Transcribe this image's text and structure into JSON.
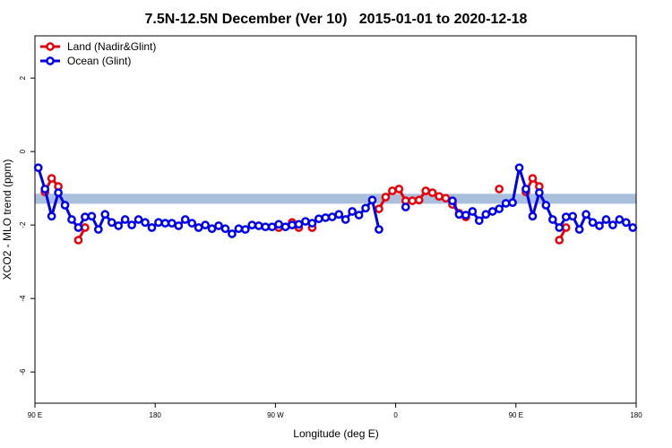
{
  "chart_data": {
    "type": "line",
    "title": "7.5N-12.5N December (Ver 10)   2015-01-01 to 2020-12-18",
    "xlabel": "Longitude (deg E)",
    "ylabel": "XCO2 - MLO trend (ppm)",
    "xlim": [
      90,
      540
    ],
    "ylim": [
      -6.85,
      3.15
    ],
    "xticks": [
      {
        "value": 90,
        "label": "90 E"
      },
      180,
      {
        "value": 270,
        "label": "90 W"
      },
      {
        "value": 360,
        "label": "0"
      },
      {
        "value": 450,
        "label": "90 E"
      },
      {
        "value": 540,
        "label": "180"
      }
    ],
    "yticks": [
      -6,
      -4,
      -2,
      0,
      2
    ],
    "reference_band": {
      "color": "#a9bfdc",
      "range": [
        -1.42,
        -1.15
      ]
    },
    "legend": "top-left",
    "series": [
      {
        "name": "Land (Nadir&Glint)",
        "color": "#e8000b",
        "x": [
          97.5,
          102.5,
          107.5,
          112.5,
          122.5,
          127.5,
          132.5,
          272.5,
          277.5,
          282.5,
          287.5,
          292.5,
          297.5,
          302.5,
          347.5,
          352.5,
          357.5,
          362.5,
          367.5,
          372.5,
          377.5,
          382.5,
          387.5,
          392.5,
          397.5,
          402.5,
          407.5,
          412.5,
          417.5,
          432.5,
          437.5,
          442.5,
          457.5,
          462.5,
          467.5,
          472.5,
          482.5,
          487.5,
          492.5
        ],
        "values": [
          -1.1,
          -0.73,
          -0.95,
          null,
          -2.41,
          -2.07,
          null,
          -2.07,
          null,
          -1.93,
          -2.07,
          null,
          -2.07,
          null,
          -1.56,
          -1.24,
          -1.07,
          -1.02,
          -1.34,
          -1.34,
          -1.32,
          -1.07,
          -1.12,
          -1.22,
          -1.27,
          -1.44,
          -1.68,
          -1.78,
          null,
          null,
          -1.02,
          null,
          -1.1,
          -0.73,
          -0.95,
          null,
          -2.41,
          -2.07,
          null
        ]
      },
      {
        "name": "Ocean (Glint)",
        "color": "#0000ee",
        "x": [
          92.5,
          97.5,
          102.5,
          107.5,
          112.5,
          117.5,
          122.5,
          127.5,
          132.5,
          137.5,
          142.5,
          147.5,
          152.5,
          157.5,
          162.5,
          167.5,
          172.5,
          177.5,
          182.5,
          187.5,
          192.5,
          197.5,
          202.5,
          207.5,
          212.5,
          217.5,
          222.5,
          227.5,
          232.5,
          237.5,
          242.5,
          247.5,
          252.5,
          257.5,
          262.5,
          267.5,
          272.5,
          277.5,
          282.5,
          287.5,
          292.5,
          297.5,
          302.5,
          307.5,
          312.5,
          317.5,
          322.5,
          327.5,
          332.5,
          337.5,
          342.5,
          347.5,
          352.5,
          367.5,
          372.5,
          402.5,
          407.5,
          412.5,
          417.5,
          422.5,
          427.5,
          432.5,
          437.5,
          442.5,
          447.5,
          452.5,
          457.5,
          462.5,
          467.5,
          472.5,
          477.5,
          482.5,
          487.5,
          492.5,
          497.5,
          502.5,
          507.5,
          512.5,
          517.5,
          522.5,
          527.5,
          532.5,
          537.5
        ],
        "values": [
          -0.44,
          -1.02,
          -1.76,
          -1.12,
          -1.46,
          -1.85,
          -2.07,
          -1.78,
          -1.76,
          -2.12,
          -1.71,
          -1.93,
          -2.02,
          -1.85,
          -2.0,
          -1.85,
          -1.93,
          -2.07,
          -1.93,
          -1.95,
          -1.95,
          -2.02,
          -1.85,
          -1.95,
          -2.07,
          -2.0,
          -2.1,
          -2.02,
          -2.1,
          -2.24,
          -2.1,
          -2.12,
          -2.0,
          -2.02,
          -2.05,
          -2.05,
          -1.98,
          -2.05,
          -2.0,
          -1.98,
          -1.9,
          -1.95,
          -1.83,
          -1.8,
          -1.78,
          -1.71,
          -1.85,
          -1.63,
          -1.73,
          -1.54,
          -1.32,
          -2.12,
          null,
          -1.51,
          null,
          -1.34,
          -1.71,
          -1.73,
          -1.63,
          -1.88,
          -1.71,
          -1.63,
          -1.56,
          -1.41,
          -1.39,
          -0.44,
          -1.02,
          -1.76,
          -1.12,
          -1.46,
          -1.85,
          -2.07,
          -1.78,
          -1.76,
          -2.12,
          -1.71,
          -1.93,
          -2.02,
          -1.85,
          -2.0,
          -1.85,
          -1.93,
          -2.07
        ]
      }
    ]
  }
}
